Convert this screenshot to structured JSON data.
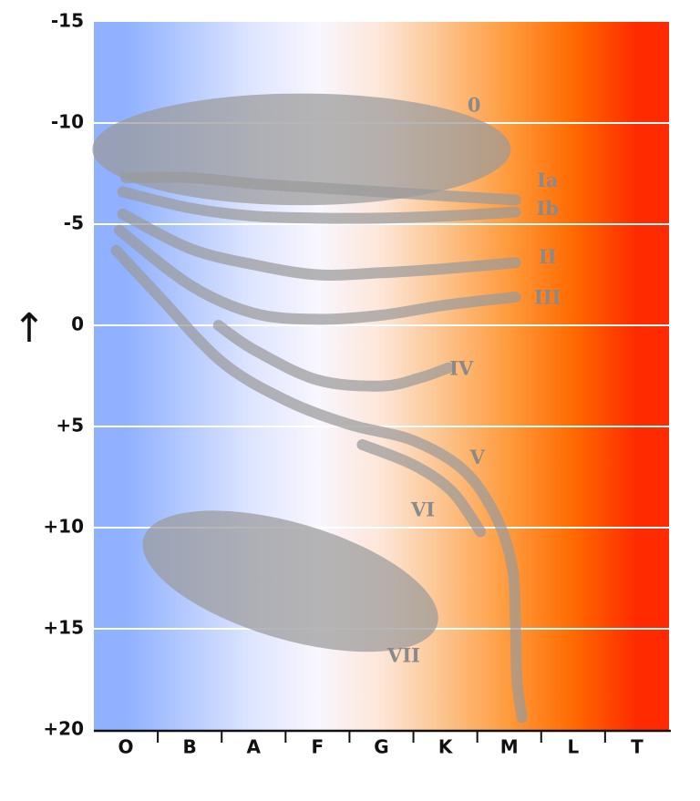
{
  "chart_data": {
    "type": "area",
    "title": "",
    "xlabel": "",
    "ylabel": "↑",
    "categories": [
      "O",
      "B",
      "A",
      "F",
      "G",
      "K",
      "M",
      "L",
      "T"
    ],
    "ylim": [
      -15,
      20
    ],
    "y_inverted": true,
    "yticks": [
      -15,
      -10,
      -5,
      0,
      5,
      10,
      15,
      20
    ],
    "ytick_labels": [
      "-15",
      "-10",
      "-5",
      "0",
      "+5",
      "+10",
      "+15",
      "+20"
    ],
    "grid": "horizontal",
    "background_gradient": [
      {
        "category": "O",
        "color": "#8fb1ff"
      },
      {
        "category": "A",
        "color": "#dfe6ff"
      },
      {
        "category": "F",
        "color": "#f8f6ff"
      },
      {
        "category": "G",
        "color": "#fde6d8"
      },
      {
        "category": "K",
        "color": "#fcc28a"
      },
      {
        "category": "M",
        "color": "#ff9a3c"
      },
      {
        "category": "L",
        "color": "#ff6a00"
      },
      {
        "category": "T",
        "color": "#ff2a00"
      }
    ],
    "band_color": "#9a9a9a",
    "series": [
      {
        "name": "0",
        "shape": "blob",
        "points": [
          [
            0.5,
            -8.7
          ],
          [
            6.0,
            -8.7
          ]
        ],
        "width_mag": 2.4,
        "label_at": [
          5.95,
          -10.8
        ]
      },
      {
        "name": "Ia",
        "shape": "band",
        "points": [
          [
            0.5,
            -7.3
          ],
          [
            1.5,
            -7.3
          ],
          [
            2.5,
            -7.0
          ],
          [
            3.5,
            -6.8
          ],
          [
            4.5,
            -6.6
          ],
          [
            5.5,
            -6.4
          ],
          [
            6.6,
            -6.2
          ]
        ],
        "label_at": [
          7.1,
          -7.1
        ]
      },
      {
        "name": "Ib",
        "shape": "band",
        "points": [
          [
            0.45,
            -6.6
          ],
          [
            1.5,
            -5.8
          ],
          [
            2.5,
            -5.4
          ],
          [
            3.5,
            -5.3
          ],
          [
            4.5,
            -5.3
          ],
          [
            5.5,
            -5.4
          ],
          [
            6.6,
            -5.6
          ]
        ],
        "label_at": [
          7.1,
          -5.7
        ]
      },
      {
        "name": "II",
        "shape": "band",
        "points": [
          [
            0.45,
            -5.5
          ],
          [
            1.5,
            -3.8
          ],
          [
            2.5,
            -3.0
          ],
          [
            3.5,
            -2.5
          ],
          [
            4.5,
            -2.6
          ],
          [
            5.5,
            -2.8
          ],
          [
            6.6,
            -3.1
          ]
        ],
        "label_at": [
          7.1,
          -3.3
        ]
      },
      {
        "name": "III",
        "shape": "band",
        "points": [
          [
            0.4,
            -4.7
          ],
          [
            1.5,
            -2.0
          ],
          [
            2.5,
            -0.6
          ],
          [
            3.5,
            -0.3
          ],
          [
            4.5,
            -0.5
          ],
          [
            5.5,
            -1.0
          ],
          [
            6.6,
            -1.4
          ]
        ],
        "label_at": [
          7.1,
          -1.3
        ]
      },
      {
        "name": "IV",
        "shape": "band",
        "points": [
          [
            1.95,
            0.0
          ],
          [
            2.5,
            1.2
          ],
          [
            3.5,
            2.7
          ],
          [
            4.5,
            3.0
          ],
          [
            5.1,
            2.6
          ],
          [
            5.55,
            2.1
          ]
        ],
        "label_at": [
          5.75,
          2.2
        ]
      },
      {
        "name": "V",
        "shape": "band",
        "points": [
          [
            0.35,
            -3.7
          ],
          [
            1.0,
            -1.5
          ],
          [
            2.0,
            1.8
          ],
          [
            3.0,
            3.7
          ],
          [
            4.0,
            4.9
          ],
          [
            5.0,
            5.7
          ],
          [
            5.8,
            7.2
          ],
          [
            6.3,
            9.5
          ],
          [
            6.55,
            12.0
          ],
          [
            6.6,
            15.0
          ],
          [
            6.62,
            17.5
          ],
          [
            6.7,
            19.4
          ]
        ],
        "label_at": [
          6.0,
          6.6
        ]
      },
      {
        "name": "VI",
        "shape": "band",
        "points": [
          [
            4.2,
            5.9
          ],
          [
            5.0,
            6.9
          ],
          [
            5.6,
            8.2
          ],
          [
            6.05,
            10.2
          ]
        ],
        "label_at": [
          5.15,
          9.2
        ]
      },
      {
        "name": "VII",
        "shape": "blob",
        "points": [
          [
            1.3,
            11.0
          ],
          [
            4.85,
            14.3
          ]
        ],
        "width_mag": 2.5,
        "label_at": [
          4.85,
          16.4
        ]
      }
    ]
  }
}
